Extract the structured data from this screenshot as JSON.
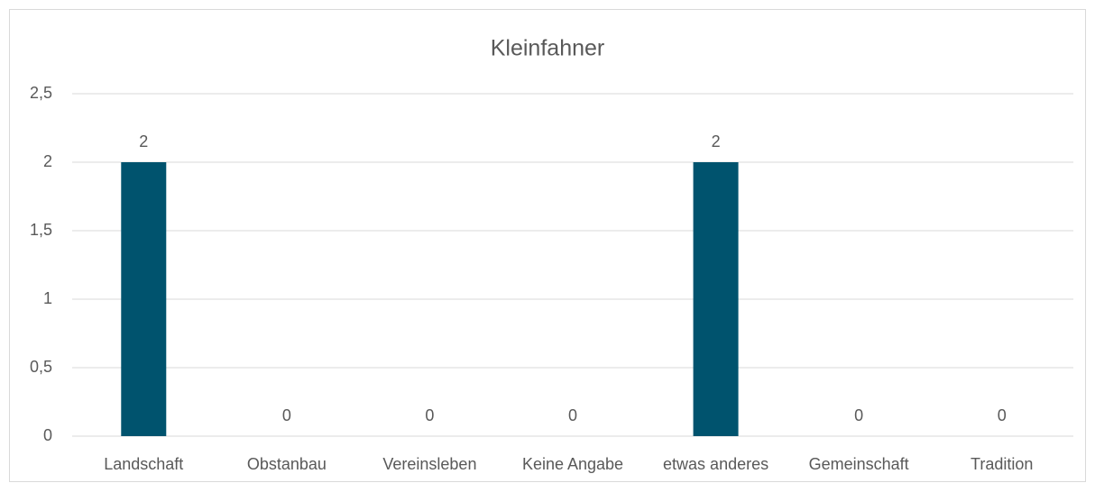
{
  "chart_data": {
    "type": "bar",
    "title": "Kleinfahner",
    "categories": [
      "Landschaft",
      "Obstanbau",
      "Vereinsleben",
      "Keine Angabe",
      "etwas anderes",
      "Gemeinschaft",
      "Tradition"
    ],
    "values": [
      2,
      0,
      0,
      0,
      2,
      0,
      0
    ],
    "color": "#00536e",
    "ylim": [
      0,
      2.5
    ],
    "yticks": [
      0,
      {
        "value": 0.5,
        "label": "0,5"
      },
      1,
      {
        "value": 1.5,
        "label": "1,5"
      },
      2,
      {
        "value": 2.5,
        "label": "2,5"
      }
    ],
    "grid": true
  }
}
